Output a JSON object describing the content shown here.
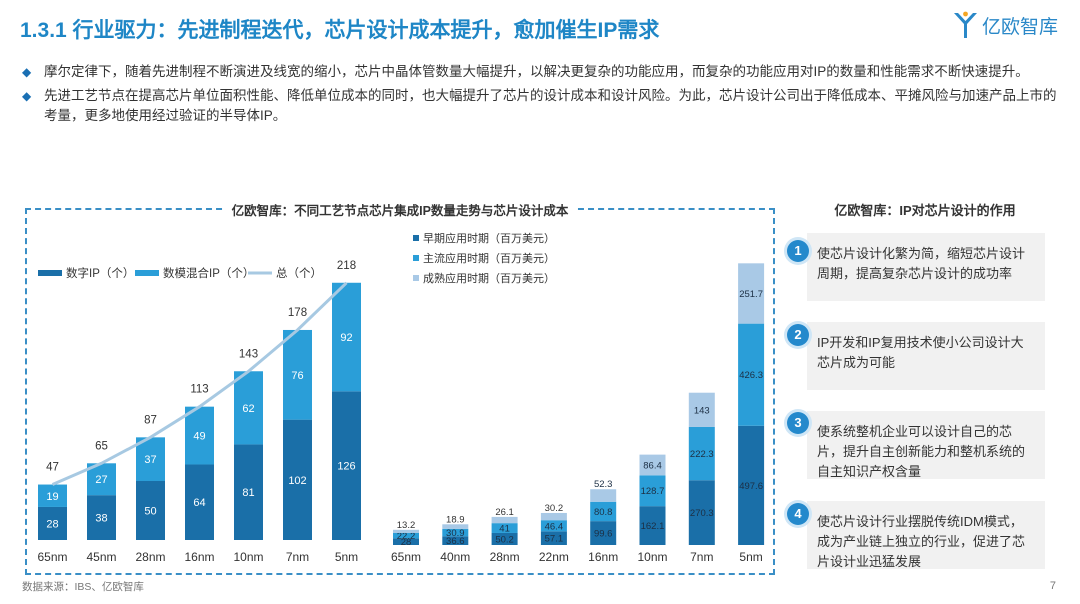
{
  "title": "1.3.1 行业驱力：先进制程迭代，芯片设计成本提升，愈加催生IP需求",
  "logo": {
    "text": "亿欧智库"
  },
  "bullets": [
    "摩尔定律下，随着先进制程不断演进及线宽的缩小，芯片中晶体管数量大幅提升，以解决更复杂的功能应用，而复杂的功能应用对IP的数量和性能需求不断快速提升。",
    "先进工艺节点在提高芯片单位面积性能、降低单位成本的同时，也大幅提升了芯片的设计成本和设计风险。为此，芯片设计公司出于降低成本、平摊风险与加速产品上市的考量，更多地使用经过验证的半导体IP。"
  ],
  "chart_panel_title": "亿欧智库：不同工艺节点芯片集成IP数量走势与芯片设计成本",
  "chart_data": [
    {
      "type": "bar",
      "stacked": true,
      "categories": [
        "65nm",
        "45nm",
        "28nm",
        "16nm",
        "10nm",
        "7nm",
        "5nm"
      ],
      "series": [
        {
          "name": "数字IP（个）",
          "values": [
            28,
            38,
            50,
            64,
            81,
            102,
            126
          ],
          "color": "#1a6fa8"
        },
        {
          "name": "数模混合IP（个）",
          "values": [
            19,
            27,
            37,
            49,
            62,
            76,
            92
          ],
          "color": "#2a9ed8"
        },
        {
          "name": "总（个）",
          "type": "line",
          "values": [
            47,
            65,
            87,
            113,
            143,
            178,
            218
          ],
          "color": "#a7c9e2"
        }
      ]
    },
    {
      "type": "bar",
      "stacked": true,
      "categories": [
        "65nm",
        "40nm",
        "28nm",
        "22nm",
        "16nm",
        "10nm",
        "7nm",
        "5nm"
      ],
      "series": [
        {
          "name": "早期应用时期（百万美元）",
          "values": [
            28,
            36.6,
            50.2,
            57.1,
            99.6,
            162.1,
            270.3,
            497.6
          ],
          "color": "#1a6fa8"
        },
        {
          "name": "主流应用时期（百万美元）",
          "values": [
            22.2,
            30.9,
            41.0,
            46.4,
            80.8,
            128.7,
            222.3,
            426.3
          ],
          "color": "#2a9ed8"
        },
        {
          "name": "成熟应用时期（百万美元）",
          "values": [
            13.2,
            18.9,
            26.1,
            30.2,
            52.3,
            86.4,
            143,
            251.7
          ],
          "color": "#a9c9e6"
        }
      ]
    }
  ],
  "right_panel": {
    "title": "亿欧智库：IP对芯片设计的作用",
    "items": [
      {
        "num": "1",
        "text": "使芯片设计化繁为简，缩短芯片设计周期，提高复杂芯片设计的成功率"
      },
      {
        "num": "2",
        "text": "IP开发和IP复用技术使小公司设计大芯片成为可能"
      },
      {
        "num": "3",
        "text": "使系统整机企业可以设计自己的芯片，提升自主创新能力和整机系统的自主知识产权含量"
      },
      {
        "num": "4",
        "text": "使芯片设计行业摆脱传统IDM模式，成为产业链上独立的行业，促进了芯片设计业迅猛发展"
      }
    ]
  },
  "source": "数据来源：IBS、亿欧智库",
  "page_number": "7"
}
